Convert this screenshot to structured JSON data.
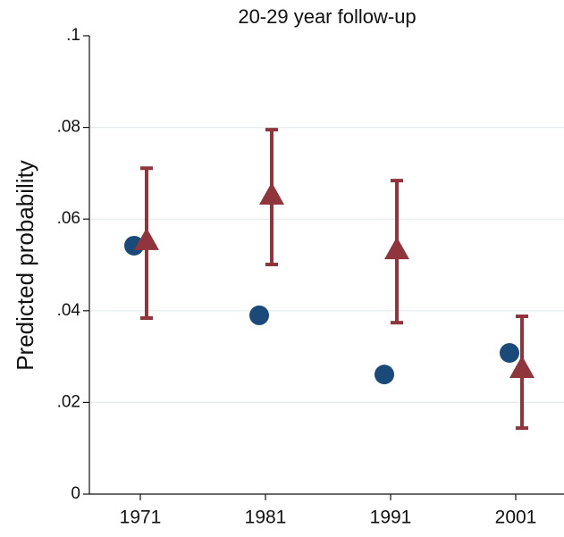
{
  "chart_data": {
    "type": "dot-errorbar",
    "title": "20-29 year follow-up",
    "y_label": "Predicted probability",
    "categories": [
      "1971",
      "1981",
      "1991",
      "2001"
    ],
    "series": [
      {
        "color": "#1a4a7a",
        "marker": "circle",
        "values": [
          0.0542,
          0.039,
          0.0261,
          0.0308
        ]
      },
      {
        "color": "#90353b",
        "marker": "triangle",
        "values": [
          0.0552,
          0.0651,
          0.0532,
          0.0273
        ],
        "lower": [
          0.0384,
          0.0501,
          0.0374,
          0.0144
        ],
        "upper": [
          0.0711,
          0.0795,
          0.0684,
          0.0388
        ]
      }
    ],
    "ylim": [
      0,
      0.1
    ],
    "yticks": [
      0,
      {
        "value": 0.02,
        "label": ".02"
      },
      {
        "value": 0.04,
        "label": ".04"
      },
      {
        "value": 0.06,
        "label": ".06"
      },
      {
        "value": 0.08,
        "label": ".08"
      },
      {
        "value": 0.1,
        "label": ".1"
      }
    ],
    "grid": true
  }
}
